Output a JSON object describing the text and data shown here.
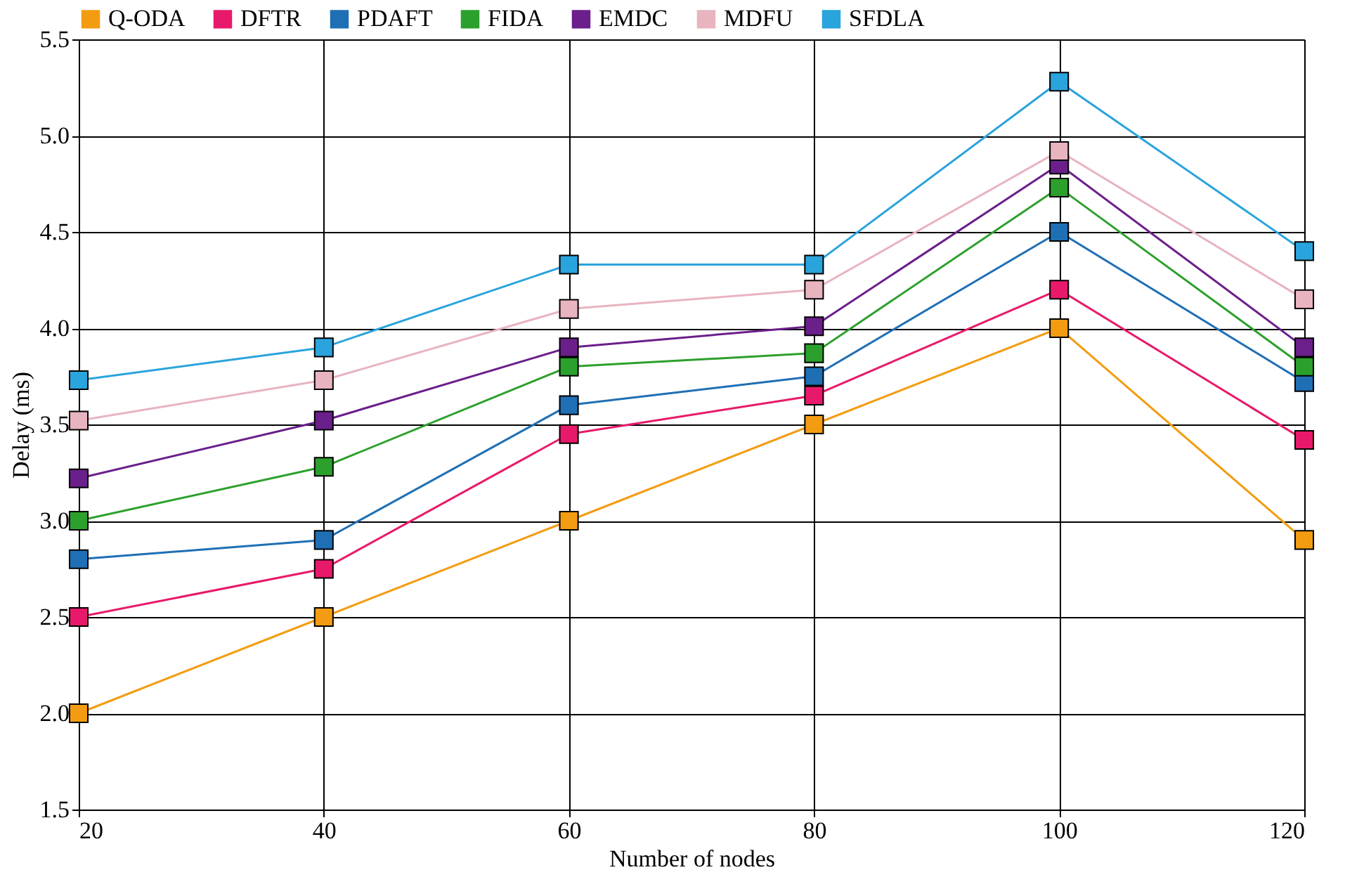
{
  "chart_data": {
    "type": "line",
    "xlabel": "Number of nodes",
    "ylabel": "Delay (ms)",
    "x": [
      20,
      40,
      60,
      80,
      100,
      120
    ],
    "xlim": [
      20,
      120
    ],
    "xticks": [
      20,
      40,
      60,
      80,
      100,
      120
    ],
    "ylim": [
      1.5,
      5.5
    ],
    "yticks": [
      1.5,
      {
        "value": 2,
        "label": "2.0"
      },
      2.5,
      {
        "value": 3,
        "label": "3.0"
      },
      3.5,
      {
        "value": 4,
        "label": "4.0"
      },
      4.5,
      {
        "value": 5,
        "label": "5.0"
      },
      5.5
    ],
    "grid": true,
    "legend": "top",
    "marker": "square",
    "line_style": "solid",
    "series": [
      {
        "name": "Q-ODA",
        "color": "#f39c12",
        "values": [
          2.0,
          2.5,
          3.0,
          3.5,
          4.0,
          2.9
        ]
      },
      {
        "name": "DFTR",
        "color": "#e8196b",
        "values": [
          2.5,
          2.75,
          3.45,
          3.65,
          4.2,
          3.42
        ]
      },
      {
        "name": "PDAFT",
        "color": "#1f6fb5",
        "values": [
          2.8,
          2.9,
          3.6,
          3.75,
          4.5,
          3.72
        ]
      },
      {
        "name": "FIDA",
        "color": "#2ca02c",
        "values": [
          3.0,
          3.28,
          3.8,
          3.87,
          4.73,
          3.8
        ]
      },
      {
        "name": "EMDC",
        "color": "#6a1f8a",
        "values": [
          3.22,
          3.52,
          3.9,
          4.01,
          4.85,
          3.9
        ]
      },
      {
        "name": "MDFU",
        "color": "#e8b4c0",
        "values": [
          3.52,
          3.73,
          4.1,
          4.2,
          4.92,
          4.15
        ]
      },
      {
        "name": "SFDLA",
        "color": "#2aa4dc",
        "values": [
          3.73,
          3.9,
          4.33,
          4.33,
          5.28,
          4.4
        ]
      }
    ]
  }
}
